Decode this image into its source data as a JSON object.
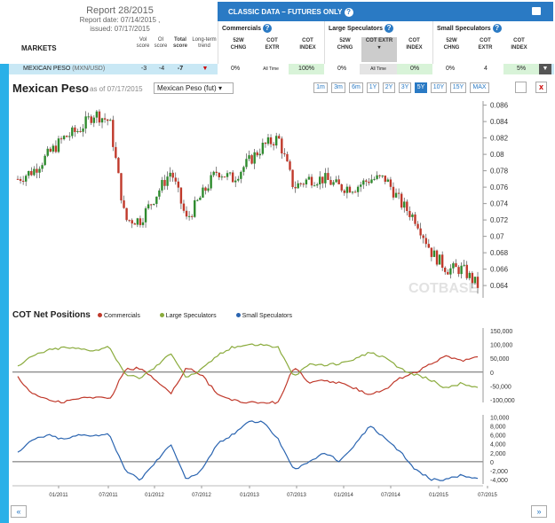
{
  "report": {
    "title": "Report 28/2015",
    "date": "Report date: 07/14/2015 ,",
    "issued": "issued: 07/17/2015"
  },
  "markets_label": "MARKETS",
  "score_cols": [
    "Vol score",
    "OI score",
    "Total score",
    "Long-term trend"
  ],
  "classic": {
    "label": "CLASSIC DATA – FUTURES ONLY",
    "help": "?"
  },
  "groups": [
    {
      "title": "Commercials",
      "cols": [
        "52W CHNG",
        "COT EXTR",
        "COT INDEX"
      ]
    },
    {
      "title": "Large Speculators",
      "cols": [
        "52W CHNG",
        "COT EXTR",
        "COT INDEX"
      ]
    },
    {
      "title": "Small Speculators",
      "cols": [
        "52W CHNG",
        "COT EXTR",
        "COT INDEX"
      ]
    }
  ],
  "market_row": {
    "name": "MEXICAN PESO",
    "code": "(MXN/USD)",
    "vol": "-3",
    "oi": "-4",
    "total": "-7",
    "values": [
      "0%",
      "All Time",
      "100%",
      "0%",
      "All Time",
      "0%",
      "0%",
      "4",
      "5%"
    ]
  },
  "chart": {
    "title": "Mexican Peso",
    "asof": "as of 07/17/2015",
    "instrument": "Mexican Peso (fut)",
    "ranges": [
      "1m",
      "3m",
      "6m",
      "1Y",
      "2Y",
      "3Y",
      "5Y",
      "10Y",
      "15Y",
      "MAX"
    ],
    "active_range": "5Y",
    "watermark": "COTBASE",
    "close": "x"
  },
  "net_positions": {
    "title": "COT Net Positions",
    "legend": [
      "Commercials",
      "Large Speculators",
      "Small Speculators"
    ],
    "colors": {
      "commercials": "#c0392b",
      "large": "#8aab3c",
      "small": "#2a64b0"
    }
  },
  "nav": {
    "prev": "«",
    "next": "»"
  },
  "chart_data": [
    {
      "type": "candlestick",
      "ylim": [
        0.0625,
        0.0865
      ],
      "yticks": [
        "0.086",
        "0.084",
        "0.082",
        "0.08",
        "0.078",
        "0.076",
        "0.074",
        "0.072",
        "0.07",
        "0.068",
        "0.066",
        "0.064"
      ],
      "x": [
        "2010-07",
        "2010-09",
        "2010-11",
        "2011-01",
        "2011-03",
        "2011-05",
        "2011-07",
        "2011-09",
        "2011-11",
        "2012-01",
        "2012-03",
        "2012-05",
        "2012-07",
        "2012-09",
        "2012-11",
        "2013-01",
        "2013-03",
        "2013-05",
        "2013-07",
        "2013-09",
        "2013-11",
        "2014-01",
        "2014-03",
        "2014-05",
        "2014-07",
        "2014-09",
        "2014-11",
        "2015-01",
        "2015-03",
        "2015-05",
        "2015-07"
      ],
      "values": [
        0.077,
        0.078,
        0.08,
        0.082,
        0.083,
        0.085,
        0.084,
        0.072,
        0.072,
        0.075,
        0.078,
        0.072,
        0.075,
        0.078,
        0.077,
        0.079,
        0.081,
        0.082,
        0.076,
        0.077,
        0.077,
        0.076,
        0.076,
        0.077,
        0.077,
        0.074,
        0.072,
        0.068,
        0.066,
        0.066,
        0.064
      ]
    },
    {
      "type": "line",
      "yticks": [
        "150,000",
        "100,000",
        "50,000",
        "0",
        "-50,000",
        "-100,000"
      ],
      "ylim": [
        -110000,
        160000
      ],
      "series": [
        {
          "name": "Commercials",
          "values": [
            -20000,
            -80000,
            -100000,
            -110000,
            -95000,
            -90000,
            -100000,
            10000,
            15000,
            -30000,
            -80000,
            20000,
            -10000,
            -80000,
            -100000,
            -110000,
            -110000,
            -110000,
            20000,
            -40000,
            -30000,
            -40000,
            -60000,
            -80000,
            -60000,
            -20000,
            0,
            30000,
            60000,
            40000,
            60000
          ]
        },
        {
          "name": "Large Speculators",
          "values": [
            20000,
            60000,
            80000,
            90000,
            85000,
            80000,
            90000,
            -10000,
            -20000,
            20000,
            70000,
            -20000,
            10000,
            60000,
            90000,
            100000,
            100000,
            90000,
            -20000,
            30000,
            25000,
            30000,
            50000,
            70000,
            50000,
            10000,
            -10000,
            -30000,
            -60000,
            -40000,
            -60000
          ]
        }
      ]
    },
    {
      "type": "line",
      "yticks": [
        "10,000",
        "8,000",
        "6,000",
        "4,000",
        "2,000",
        "0",
        "-2,000",
        "-4,000"
      ],
      "ylim": [
        -5000,
        10500
      ],
      "x_ticks": [
        "01/2011",
        "07/2011",
        "01/2012",
        "07/2012",
        "01/2013",
        "07/2013",
        "01/2014",
        "07/2014",
        "01/2015",
        "07/2015"
      ],
      "series": [
        {
          "name": "Small Speculators",
          "values": [
            2000,
            5000,
            6000,
            5000,
            6000,
            6000,
            6000,
            -2000,
            -4000,
            0,
            4000,
            -4000,
            -2000,
            4000,
            6000,
            9000,
            9000,
            5000,
            -2000,
            0,
            2000,
            0,
            4000,
            8000,
            5000,
            2000,
            -2000,
            -4000,
            -4000,
            -3000,
            -4000
          ]
        }
      ]
    }
  ]
}
